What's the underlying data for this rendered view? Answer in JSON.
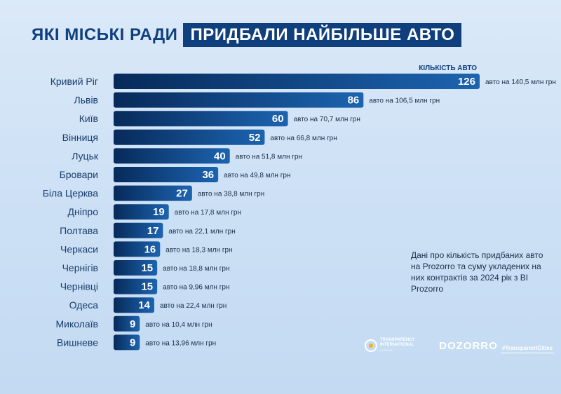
{
  "title": {
    "part1": "ЯКІ МІСЬКІ РАДИ",
    "part2": "ПРИДБАЛИ НАЙБІЛЬШЕ АВТО"
  },
  "chart_data": {
    "type": "bar",
    "orientation": "horizontal",
    "value_label": "КІЛЬКІСТЬ АВТО",
    "categories": [
      "Кривий Ріг",
      "Львів",
      "Київ",
      "Вінниця",
      "Луцьк",
      "Бровари",
      "Біла Церква",
      "Дніпро",
      "Полтава",
      "Черкаси",
      "Чернігів",
      "Чернівці",
      "Одеса",
      "Миколаїв",
      "Вишневе"
    ],
    "values": [
      126,
      86,
      60,
      52,
      40,
      36,
      27,
      19,
      17,
      16,
      15,
      15,
      14,
      9,
      9
    ],
    "annotations": [
      "авто на 140,5 млн грн",
      "авто на 106,5 млн грн",
      "авто на 70,7 млн грн",
      "авто на 66,8 млн грн",
      "авто на 51,8 млн грн",
      "авто на 49,8 млн грн",
      "авто на 38,8 млн грн",
      "авто на 17,8 млн грн",
      "авто на 22,1 млн грн",
      "авто на 18,3 млн грн",
      "авто на 18,8 млн грн",
      "авто на 9,96 млн грн",
      "авто на 22,4 млн грн",
      "авто на 10,4 млн грн",
      "авто на 13,96 млн грн"
    ],
    "xlim": [
      0,
      126
    ],
    "colors": {
      "bar_start": "#072a5a",
      "bar_end": "#1c64b0"
    }
  },
  "note": "Дані про кількість придбаних авто на Prozorro та суму укладених на них контрактів за 2024 рік з BI Prozorro",
  "logos": {
    "transparency": "TRANSPARENCY INTERNATIONAL",
    "transparency_sub": "UKRAINE",
    "dozorro": "DOZORRO",
    "transparent_cities": "#TransparentCities"
  }
}
